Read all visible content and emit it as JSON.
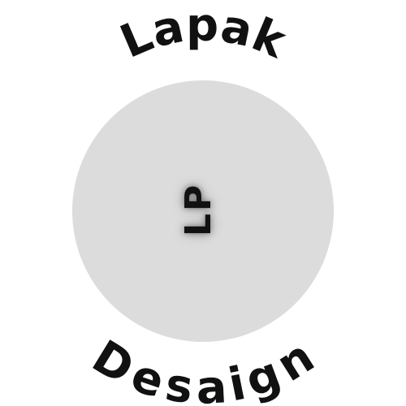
{
  "logo": {
    "top_text": "Lapak",
    "bottom_text": "Desaign",
    "monogram": "LP",
    "colors": {
      "disc": "#dcdcdc",
      "text": "#111111",
      "background": "#ffffff"
    }
  }
}
